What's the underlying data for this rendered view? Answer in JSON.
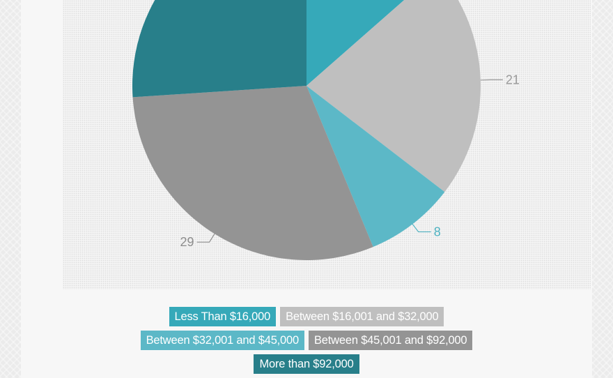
{
  "chart_data": {
    "type": "pie",
    "slices": [
      {
        "label": "Less Than $16,000",
        "value": 13,
        "color": "#36a9b9",
        "data_label": ""
      },
      {
        "label": "Between $16,001 and $32,000",
        "value": 21,
        "color": "#bfbfbf",
        "data_label": "21",
        "label_color": "#9a9a9a"
      },
      {
        "label": "Between $32,001 and $45,000",
        "value": 8,
        "color": "#5cb8c7",
        "data_label": "8",
        "label_color": "#4fb3c2"
      },
      {
        "label": "Between $45,001 and $92,000",
        "value": 29,
        "color": "#949494",
        "data_label": "29",
        "label_color": "#8c8c8c"
      },
      {
        "label": "More than $92,000",
        "value": 25,
        "color": "#287f8a",
        "data_label": ""
      }
    ],
    "legend_position": "bottom"
  },
  "legend": {
    "rows": [
      [
        0,
        1
      ],
      [
        2,
        3
      ],
      [
        4
      ]
    ]
  }
}
